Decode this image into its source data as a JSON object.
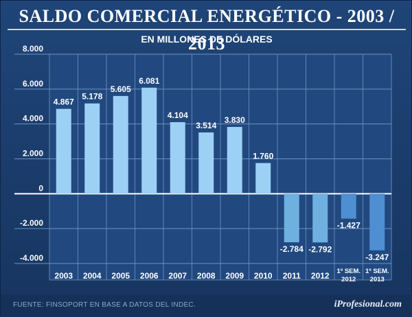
{
  "title": "SALDO COMERCIAL ENERGÉTICO - 2003 / 2013",
  "subtitle": "EN MILLONES DE DÓLARES",
  "source": "FUENTE: FINSOPORT EN BASE A DATOS DEL INDEC.",
  "brand": "iProfesional.com",
  "chart_data": {
    "type": "bar",
    "title": "SALDO COMERCIAL ENERGÉTICO - 2003 / 2013",
    "subtitle": "EN MILLONES DE DÓLARES",
    "xlabel": "",
    "ylabel": "",
    "ylim": [
      -4000,
      8000
    ],
    "yticks": [
      8000,
      6000,
      4000,
      2000,
      0,
      -2000,
      -4000
    ],
    "ytick_labels": [
      "8.000",
      "6.000",
      "4.000",
      "2.000",
      "0",
      "-2.000",
      "-4.000"
    ],
    "grid": true,
    "categories": [
      [
        "2003"
      ],
      [
        "2004"
      ],
      [
        "2005"
      ],
      [
        "2006"
      ],
      [
        "2007"
      ],
      [
        "2008"
      ],
      [
        "2009"
      ],
      [
        "2010"
      ],
      [
        "2011"
      ],
      [
        "2012"
      ],
      [
        "1º SEM.",
        "2012"
      ],
      [
        "1º SEM.",
        "2013"
      ]
    ],
    "values": [
      4867,
      5178,
      5605,
      6081,
      4104,
      3514,
      3830,
      1760,
      -2784,
      -2792,
      -1427,
      -3247
    ],
    "value_labels": [
      "4.867",
      "5.178",
      "5.605",
      "6.081",
      "4.104",
      "3.514",
      "3.830",
      "1.760",
      "-2.784",
      "-2.792",
      "-1.427",
      "-3.247"
    ],
    "colors": [
      "#9dd0f5",
      "#9dd0f5",
      "#9dd0f5",
      "#9dd0f5",
      "#9dd0f5",
      "#9dd0f5",
      "#9dd0f5",
      "#9dd0f5",
      "#6fb0e0",
      "#6fb0e0",
      "#4d8fd0",
      "#4d8fd0"
    ],
    "colors_meaning": "light blue = full years with surplus, medium blue = full years with deficit, dark blue = first-semester figures"
  }
}
